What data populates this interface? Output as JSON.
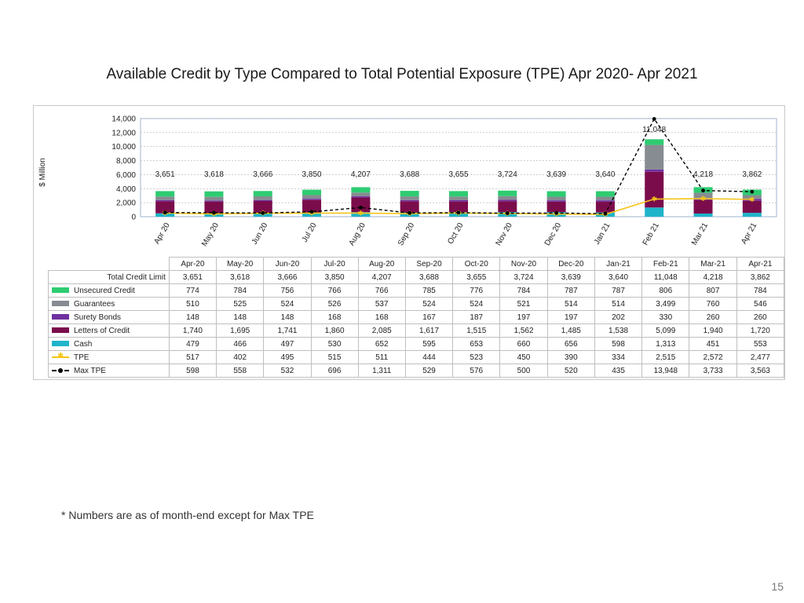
{
  "slide": {
    "title": "Available Credit by Type Compared to Total Potential Exposure (TPE) Apr 2020- Apr 2021",
    "footnote": "* Numbers are as of month-end except for Max TPE",
    "page_number": "15"
  },
  "colors": {
    "unsecured_credit": "#2ecc71",
    "guarantees": "#878c92",
    "surety_bonds": "#7030a0",
    "letters_of_credit": "#7b0c4b",
    "cash": "#1fb4c9",
    "tpe": "#f5c518",
    "max_tpe": "#000000",
    "gridline": "#b0b0b0"
  },
  "chart_data": {
    "type": "bar",
    "stacked": true,
    "ylabel": "$ Million",
    "ylim": [
      0,
      14000
    ],
    "yticks": [
      "0",
      "2,000",
      "4,000",
      "6,000",
      "8,000",
      "10,000",
      "12,000",
      "14,000"
    ],
    "grid": true,
    "categories": [
      "Apr 20",
      "May 20",
      "Jun 20",
      "Jul 20",
      "Aug 20",
      "Sep 20",
      "Oct 20",
      "Nov 20",
      "Dec 20",
      "Jan 21",
      "Feb 21",
      "Mar 21",
      "Apr 21"
    ],
    "table_columns": [
      "Apr-20",
      "May-20",
      "Jun-20",
      "Jul-20",
      "Aug-20",
      "Sep-20",
      "Oct-20",
      "Nov-20",
      "Dec-20",
      "Jan-21",
      "Feb-21",
      "Mar-21",
      "Apr-21"
    ],
    "total_label": "Total Credit Limit",
    "totals": [
      3651,
      3618,
      3666,
      3850,
      4207,
      3688,
      3655,
      3724,
      3639,
      3640,
      11048,
      4218,
      3862
    ],
    "totals_display": [
      "3,651",
      "3,618",
      "3,666",
      "3,850",
      "4,207",
      "3,688",
      "3,655",
      "3,724",
      "3,639",
      "3,640",
      "11,048",
      "4,218",
      "3,862"
    ],
    "stack_order": [
      "Cash",
      "Letters of Credit",
      "Surety Bonds",
      "Guarantees",
      "Unsecured Credit"
    ],
    "series": [
      {
        "name": "Unsecured Credit",
        "kind": "bar",
        "color_key": "unsecured_credit",
        "values": [
          774,
          784,
          756,
          766,
          766,
          785,
          776,
          784,
          787,
          787,
          806,
          807,
          784
        ],
        "display": [
          "774",
          "784",
          "756",
          "766",
          "766",
          "785",
          "776",
          "784",
          "787",
          "787",
          "806",
          "807",
          "784"
        ]
      },
      {
        "name": "Guarantees",
        "kind": "bar",
        "color_key": "guarantees",
        "values": [
          510,
          525,
          524,
          526,
          537,
          524,
          524,
          521,
          514,
          514,
          3499,
          760,
          546
        ],
        "display": [
          "510",
          "525",
          "524",
          "526",
          "537",
          "524",
          "524",
          "521",
          "514",
          "514",
          "3,499",
          "760",
          "546"
        ]
      },
      {
        "name": "Surety Bonds",
        "kind": "bar",
        "color_key": "surety_bonds",
        "values": [
          148,
          148,
          148,
          168,
          168,
          167,
          187,
          197,
          197,
          202,
          330,
          260,
          260
        ],
        "display": [
          "148",
          "148",
          "148",
          "168",
          "168",
          "167",
          "187",
          "197",
          "197",
          "202",
          "330",
          "260",
          "260"
        ]
      },
      {
        "name": "Letters of Credit",
        "kind": "bar",
        "color_key": "letters_of_credit",
        "values": [
          1740,
          1695,
          1741,
          1860,
          2085,
          1617,
          1515,
          1562,
          1485,
          1538,
          5099,
          1940,
          1720
        ],
        "display": [
          "1,740",
          "1,695",
          "1,741",
          "1,860",
          "2,085",
          "1,617",
          "1,515",
          "1,562",
          "1,485",
          "1,538",
          "5,099",
          "1,940",
          "1,720"
        ]
      },
      {
        "name": "Cash",
        "kind": "bar",
        "color_key": "cash",
        "values": [
          479,
          466,
          497,
          530,
          652,
          595,
          653,
          660,
          656,
          598,
          1313,
          451,
          553
        ],
        "display": [
          "479",
          "466",
          "497",
          "530",
          "652",
          "595",
          "653",
          "660",
          "656",
          "598",
          "1,313",
          "451",
          "553"
        ]
      },
      {
        "name": "TPE",
        "kind": "line",
        "color_key": "tpe",
        "values": [
          517,
          402,
          495,
          515,
          511,
          444,
          523,
          450,
          390,
          334,
          2515,
          2572,
          2477
        ],
        "display": [
          "517",
          "402",
          "495",
          "515",
          "511",
          "444",
          "523",
          "450",
          "390",
          "334",
          "2,515",
          "2,572",
          "2,477"
        ]
      },
      {
        "name": "Max TPE",
        "kind": "line-dashed",
        "color_key": "max_tpe",
        "values": [
          598,
          558,
          532,
          696,
          1311,
          529,
          576,
          500,
          520,
          435,
          13948,
          3733,
          3563
        ],
        "display": [
          "598",
          "558",
          "532",
          "696",
          "1,311",
          "529",
          "576",
          "500",
          "520",
          "435",
          "13,948",
          "3,733",
          "3,563"
        ]
      }
    ]
  }
}
